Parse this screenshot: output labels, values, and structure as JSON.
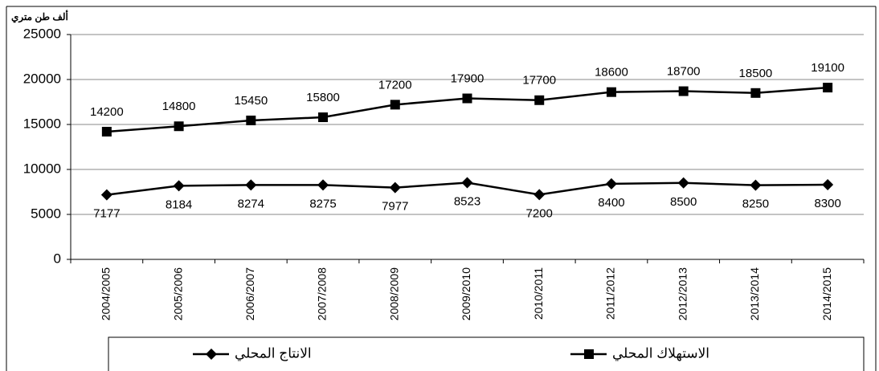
{
  "chart_data": {
    "type": "line",
    "y_label": "ألف طن متري",
    "categories": [
      "2004/2005",
      "2005/2006",
      "2006/2007",
      "2007/2008",
      "2008/2009",
      "2009/2010",
      "2010/2011",
      "2011/2012",
      "2012/2013",
      "2013/2014",
      "2014/2015"
    ],
    "series": [
      {
        "name": "الانتاج المحلي",
        "color": "#000000",
        "marker": "diamond",
        "label_position": "below",
        "values": [
          7177,
          8184,
          8274,
          8275,
          7977,
          8523,
          7200,
          8400,
          8500,
          8250,
          8300
        ]
      },
      {
        "name": "الاستهلاك المحلي",
        "color": "#000000",
        "marker": "square",
        "label_position": "above",
        "values": [
          14200,
          14800,
          15450,
          15800,
          17200,
          17900,
          17700,
          18600,
          18700,
          18500,
          19100
        ]
      }
    ],
    "ylim": [
      0,
      25000
    ],
    "yticks": [
      0,
      5000,
      10000,
      15000,
      20000,
      25000
    ],
    "grid": true,
    "legend": "bottom"
  }
}
